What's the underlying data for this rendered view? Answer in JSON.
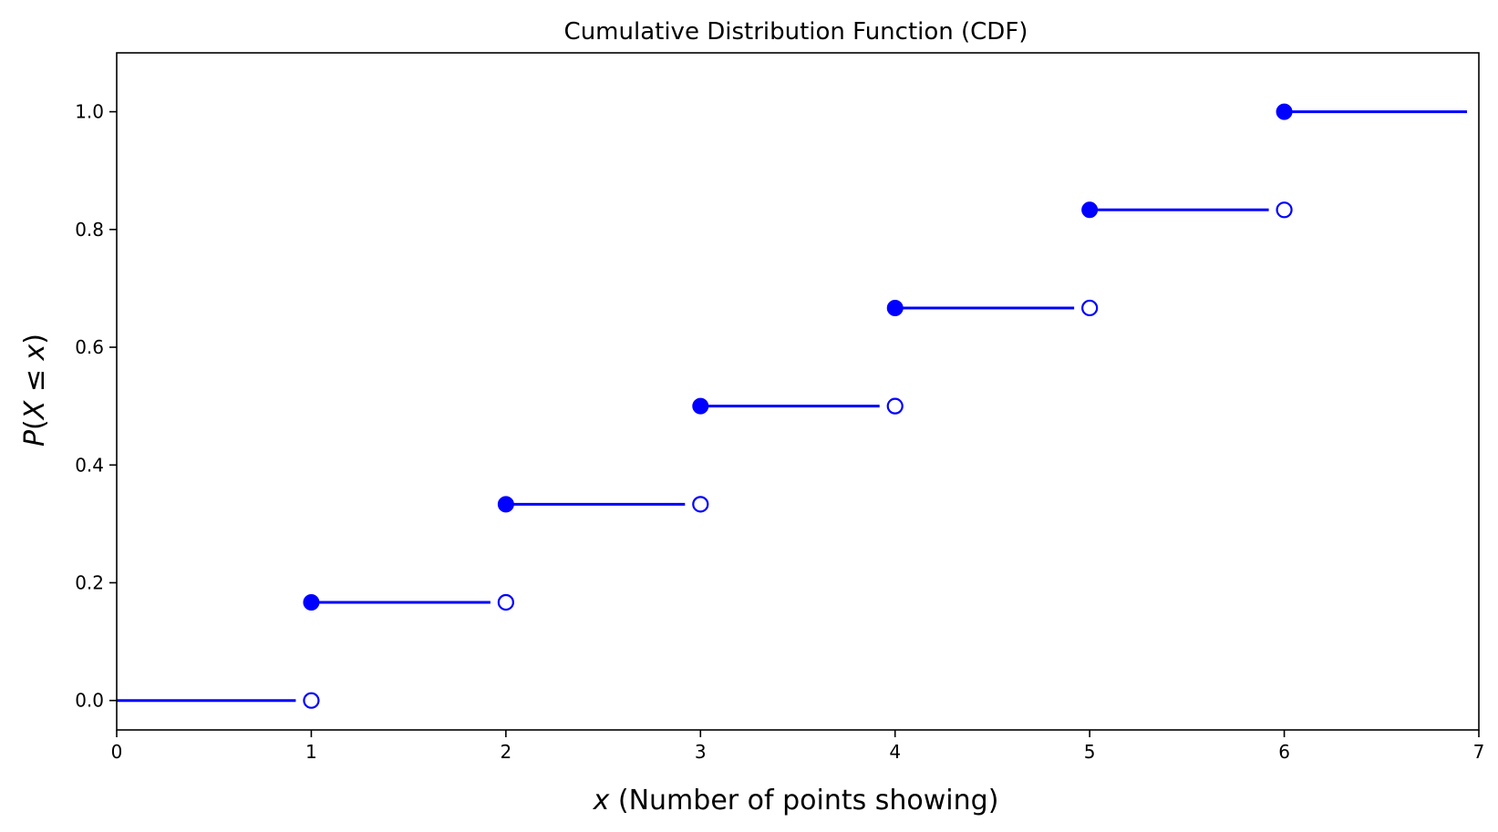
{
  "chart_data": {
    "type": "line",
    "subtype": "step-cdf",
    "title": "Cumulative Distribution Function (CDF)",
    "xlabel": {
      "var": "x",
      "text": " (Number of points showing)"
    },
    "ylabel": {
      "p": "P",
      "open": "(",
      "var1": "X",
      "rel": " ≤ ",
      "var2": "x",
      "close": ")"
    },
    "xlim": [
      0,
      7
    ],
    "ylim": [
      -0.05,
      1.1
    ],
    "xticks": [
      0,
      1,
      2,
      3,
      4,
      5,
      6,
      7
    ],
    "xtick_labels": [
      "0",
      "1",
      "2",
      "3",
      "4",
      "5",
      "6",
      "7"
    ],
    "yticks": [
      0.0,
      0.2,
      0.4,
      0.6,
      0.8,
      1.0
    ],
    "ytick_labels": [
      "0.0",
      "0.2",
      "0.4",
      "0.6",
      "0.8",
      "1.0"
    ],
    "grid": false,
    "color": "#0000ff",
    "steps": [
      {
        "x_start": 0,
        "x_end": 1,
        "y": 0.0,
        "closed_left": false,
        "open_right": true
      },
      {
        "x_start": 1,
        "x_end": 2,
        "y": 0.1667,
        "closed_left": true,
        "open_right": true
      },
      {
        "x_start": 2,
        "x_end": 3,
        "y": 0.3333,
        "closed_left": true,
        "open_right": true
      },
      {
        "x_start": 3,
        "x_end": 4,
        "y": 0.5,
        "closed_left": true,
        "open_right": true
      },
      {
        "x_start": 4,
        "x_end": 5,
        "y": 0.6667,
        "closed_left": true,
        "open_right": true
      },
      {
        "x_start": 5,
        "x_end": 6,
        "y": 0.8333,
        "closed_left": true,
        "open_right": true
      },
      {
        "x_start": 6,
        "x_end": 7,
        "y": 1.0,
        "closed_left": true,
        "open_right": false
      }
    ]
  }
}
